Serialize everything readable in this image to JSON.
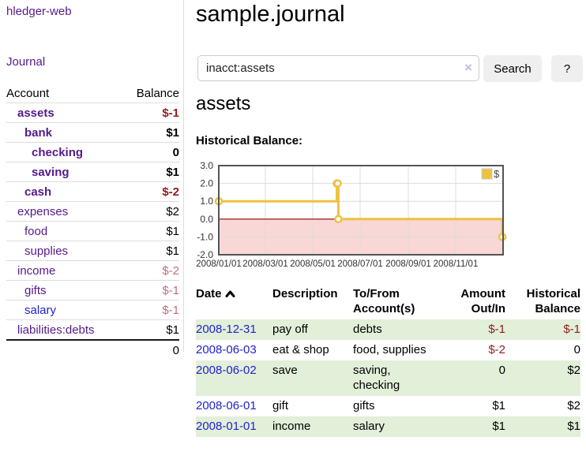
{
  "colors": {
    "link_purple": "#551a8b",
    "link_blue": "#2222cc",
    "negative_strong": "#8f1d1d",
    "negative_soft": "#bf6f7a",
    "row_stripe_green": "#e2efd9",
    "chart_line_gold": "#edc240",
    "chart_negative_fill": "#f9d7d7",
    "chart_zero_line": "#8b0000",
    "button_gray": "#efefef"
  },
  "sidebar": {
    "brand": "hledger-web",
    "nav_journal": "Journal",
    "headers": {
      "account": "Account",
      "balance": "Balance"
    },
    "accounts": [
      {
        "name": "assets",
        "indent": 1,
        "bold": true,
        "link": "purple",
        "balance": "$-1",
        "tone": "neg-strong"
      },
      {
        "name": "bank",
        "indent": 2,
        "bold": true,
        "link": "purple",
        "balance": "$1",
        "tone": "pos"
      },
      {
        "name": "checking",
        "indent": 3,
        "bold": true,
        "link": "purple",
        "balance": "0",
        "tone": "pos"
      },
      {
        "name": "saving",
        "indent": 3,
        "bold": true,
        "link": "purple",
        "balance": "$1",
        "tone": "pos"
      },
      {
        "name": "cash",
        "indent": 2,
        "bold": true,
        "link": "purple",
        "balance": "$-2",
        "tone": "neg-strong"
      },
      {
        "name": "expenses",
        "indent": 1,
        "bold": false,
        "link": "purple",
        "balance": "$2",
        "tone": "pos"
      },
      {
        "name": "food",
        "indent": 2,
        "bold": false,
        "link": "purple",
        "balance": "$1",
        "tone": "pos"
      },
      {
        "name": "supplies",
        "indent": 2,
        "bold": false,
        "link": "purple",
        "balance": "$1",
        "tone": "pos"
      },
      {
        "name": "income",
        "indent": 1,
        "bold": false,
        "link": "purple",
        "balance": "$-2",
        "tone": "neg-soft"
      },
      {
        "name": "gifts",
        "indent": 2,
        "bold": false,
        "link": "purple",
        "balance": "$-1",
        "tone": "neg-soft"
      },
      {
        "name": "salary",
        "indent": 2,
        "bold": false,
        "link": "blue",
        "balance": "$-1",
        "tone": "neg-soft"
      },
      {
        "name": "liabilities:debts",
        "indent": 1,
        "bold": false,
        "link": "purple",
        "balance": "$1",
        "tone": "pos"
      }
    ],
    "total": "0"
  },
  "header": {
    "title": "sample.journal"
  },
  "search": {
    "value": "inacct:assets",
    "clear_icon": "×",
    "button_label": "Search",
    "help_label": "?"
  },
  "account_page": {
    "heading": "assets",
    "chart_title": "Historical Balance:"
  },
  "chart_data": {
    "type": "line",
    "step": true,
    "title": "Historical Balance",
    "legend_label": "$",
    "legend_position": "top-right",
    "grid": true,
    "negative_region": true,
    "ylim": [
      -2,
      3
    ],
    "y_ticks": [
      3,
      2,
      1,
      0,
      -1,
      -2
    ],
    "xlim_days": [
      0,
      366
    ],
    "x_ticks": [
      {
        "label": "2008/01/01",
        "day": 0
      },
      {
        "label": "2008/03/01",
        "day": 60
      },
      {
        "label": "2008/05/01",
        "day": 121
      },
      {
        "label": "2008/07/01",
        "day": 182
      },
      {
        "label": "2008/09/01",
        "day": 244
      },
      {
        "label": "2008/11/01",
        "day": 305
      }
    ],
    "series": [
      {
        "name": "$",
        "color": "#edc240",
        "points": [
          {
            "date": "2008-01-01",
            "day": 0,
            "value": 1
          },
          {
            "date": "2008-06-01",
            "day": 152,
            "value": 2
          },
          {
            "date": "2008-06-02",
            "day": 153,
            "value": 2
          },
          {
            "date": "2008-06-03",
            "day": 154,
            "value": 0
          },
          {
            "date": "2008-12-31",
            "day": 365,
            "value": -1
          }
        ]
      }
    ]
  },
  "register": {
    "headers": {
      "date": "Date",
      "description": "Description",
      "tofrom": "To/From Account(s)",
      "amount": "Amount Out/In",
      "historical": "Historical Balance"
    },
    "sort_icon": "chevron-up",
    "rows": [
      {
        "date": "2008-12-31",
        "description": "pay off",
        "account_lines": [
          "debts"
        ],
        "amount": "$-1",
        "amount_neg": true,
        "balance": "$-1",
        "balance_neg": true
      },
      {
        "date": "2008-06-03",
        "description": "eat & shop",
        "account_lines": [
          "food, supplies"
        ],
        "amount": "$-2",
        "amount_neg": true,
        "balance": "0",
        "balance_neg": false
      },
      {
        "date": "2008-06-02",
        "description": "save",
        "account_lines": [
          "saving,",
          "checking"
        ],
        "amount": "0",
        "amount_neg": false,
        "balance": "$2",
        "balance_neg": false
      },
      {
        "date": "2008-06-01",
        "description": "gift",
        "account_lines": [
          "gifts"
        ],
        "amount": "$1",
        "amount_neg": false,
        "balance": "$2",
        "balance_neg": false
      },
      {
        "date": "2008-01-01",
        "description": "income",
        "account_lines": [
          "salary"
        ],
        "amount": "$1",
        "amount_neg": false,
        "balance": "$1",
        "balance_neg": false
      }
    ]
  }
}
